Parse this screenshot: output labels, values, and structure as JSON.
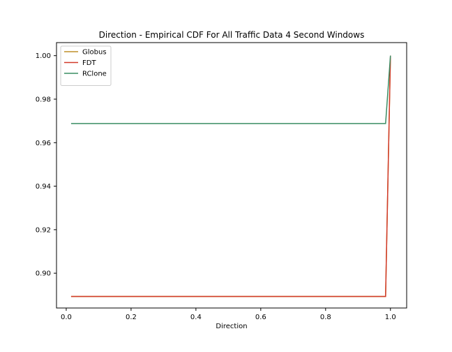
{
  "chart_data": {
    "type": "line",
    "title": "Direction - Empirical CDF For All Traffic Data 4 Second Windows",
    "xlabel": "Direction",
    "ylabel": "",
    "xlim": [
      -0.03,
      1.05
    ],
    "ylim": [
      0.884,
      1.006
    ],
    "xticks": [
      0.0,
      0.2,
      0.4,
      0.6,
      0.8,
      1.0
    ],
    "xtick_labels": [
      "0.0",
      "0.2",
      "0.4",
      "0.6",
      "0.8",
      "1.0"
    ],
    "yticks": [
      0.9,
      0.92,
      0.94,
      0.96,
      0.98,
      1.0
    ],
    "ytick_labels": [
      "0.90",
      "0.92",
      "0.94",
      "0.96",
      "0.98",
      "1.00"
    ],
    "grid": false,
    "legend_position": "top-left",
    "series": [
      {
        "name": "Globus",
        "color": "#bf8f2a",
        "x": [
          0.015,
          0.985,
          1.0
        ],
        "y": [
          0.8893,
          0.8893,
          1.0
        ]
      },
      {
        "name": "FDT",
        "color": "#d23a2a",
        "x": [
          0.015,
          0.985,
          1.0
        ],
        "y": [
          0.8893,
          0.8893,
          1.0
        ]
      },
      {
        "name": "RClone",
        "color": "#3a8d64",
        "x": [
          0.015,
          0.985,
          1.0
        ],
        "y": [
          0.9688,
          0.9688,
          1.0
        ]
      }
    ]
  }
}
